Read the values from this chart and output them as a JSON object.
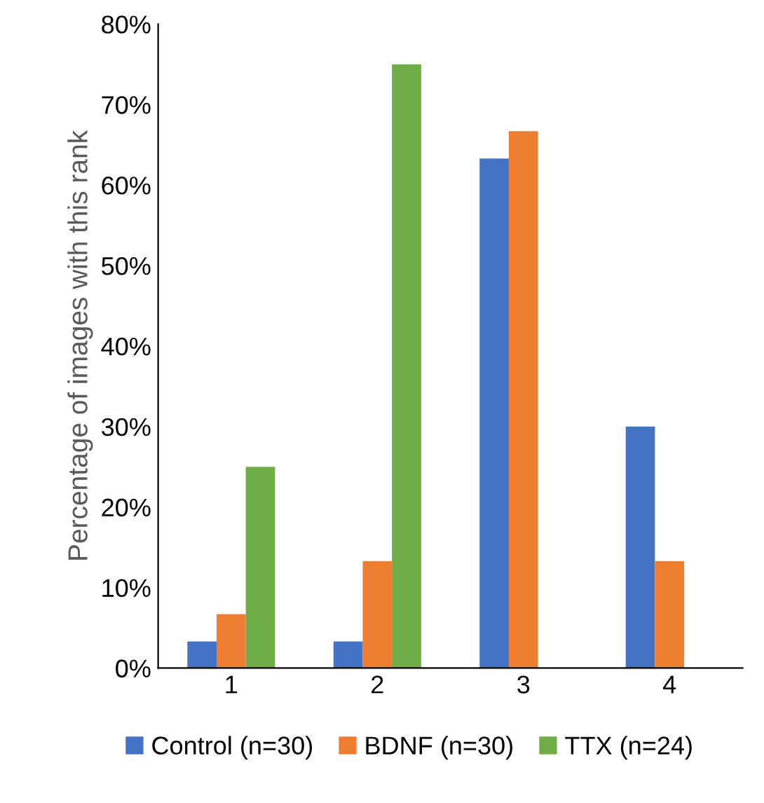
{
  "chart_data": {
    "type": "bar",
    "ylabel": "Percentage of images with this rank",
    "categories": [
      "1",
      "2",
      "3",
      "4"
    ],
    "series": [
      {
        "name": "Control (n=30)",
        "color": "#4472c4",
        "values": [
          3.3,
          3.3,
          63.3,
          30
        ]
      },
      {
        "name": "BDNF (n=30)",
        "color": "#ed7d31",
        "values": [
          6.7,
          13.3,
          66.7,
          13.3
        ]
      },
      {
        "name": "TTX (n=24)",
        "color": "#70ad47",
        "values": [
          25,
          75,
          0,
          0
        ]
      }
    ],
    "ylim": [
      0,
      80
    ],
    "yticks": [
      {
        "value": 0,
        "label": "0%"
      },
      {
        "value": 10,
        "label": "10%"
      },
      {
        "value": 20,
        "label": "20%"
      },
      {
        "value": 30,
        "label": "30%"
      },
      {
        "value": 40,
        "label": "40%"
      },
      {
        "value": 50,
        "label": "50%"
      },
      {
        "value": 60,
        "label": "60%"
      },
      {
        "value": 70,
        "label": "70%"
      },
      {
        "value": 80,
        "label": "80%"
      }
    ],
    "grid": false,
    "legend": "bottom"
  }
}
